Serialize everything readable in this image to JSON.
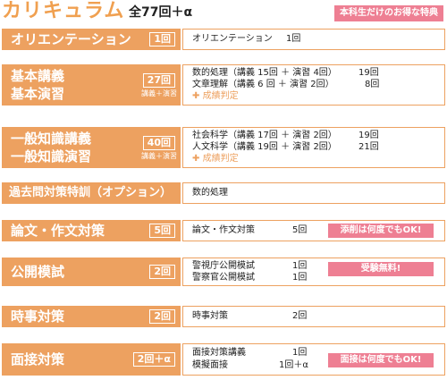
{
  "header": {
    "title": "カリキュラム",
    "total": "全77回＋α",
    "special_label": "本科生だけのお得な特典"
  },
  "courses": [
    {
      "name": "オリエンテーション",
      "count": "1回",
      "items": [
        {
          "text": "オリエンテーション",
          "count": "1回"
        }
      ]
    },
    {
      "name_line1": "基本講義",
      "name_line2": "基本演習",
      "count": "27回",
      "count_note": "講義＋演習",
      "items": [
        {
          "text": "数的処理（講義 15回 ＋ 演習 4回）",
          "count": "19回"
        },
        {
          "text": "文章理解（講義 6 回 ＋ 演習 2回）",
          "count": "8回"
        }
      ],
      "extra": "成績判定"
    },
    {
      "name_line1": "一般知識講義",
      "name_line2": "一般知識演習",
      "count": "40回",
      "count_note": "講義＋演習",
      "items": [
        {
          "text": "社会科学（講義 17回 ＋ 演習 2回）",
          "count": "19回"
        },
        {
          "text": "人文科学（講義 19回 ＋ 演習 2回）",
          "count": "21回"
        }
      ],
      "extra": "成績判定"
    },
    {
      "name": "過去問対策特訓（オプション）",
      "items": [
        {
          "text": "数的処理"
        }
      ]
    },
    {
      "name": "論文・作文対策",
      "count": "5回",
      "items": [
        {
          "text": "論文・作文対策",
          "count": "5回"
        }
      ],
      "badge": "添削は何度でもOK!"
    },
    {
      "name": "公開模試",
      "count": "2回",
      "items": [
        {
          "text": "警視庁公開模試",
          "count": "1回"
        },
        {
          "text": "警察官公開模試",
          "count": "1回"
        }
      ],
      "badge": "受験無料!"
    },
    {
      "name": "時事対策",
      "count": "2回",
      "items": [
        {
          "text": "時事対策",
          "count": "2回"
        }
      ]
    },
    {
      "name": "面接対策",
      "count": "2回＋α",
      "items": [
        {
          "text": "面接対策講義",
          "count": "1回"
        },
        {
          "text": "模擬面接",
          "count": "1回＋α"
        }
      ],
      "badge": "面接は何度でもOK!"
    }
  ],
  "colors": {
    "accent": "#EDA160",
    "title": "#F0A050",
    "badge": "#EE7F93"
  }
}
